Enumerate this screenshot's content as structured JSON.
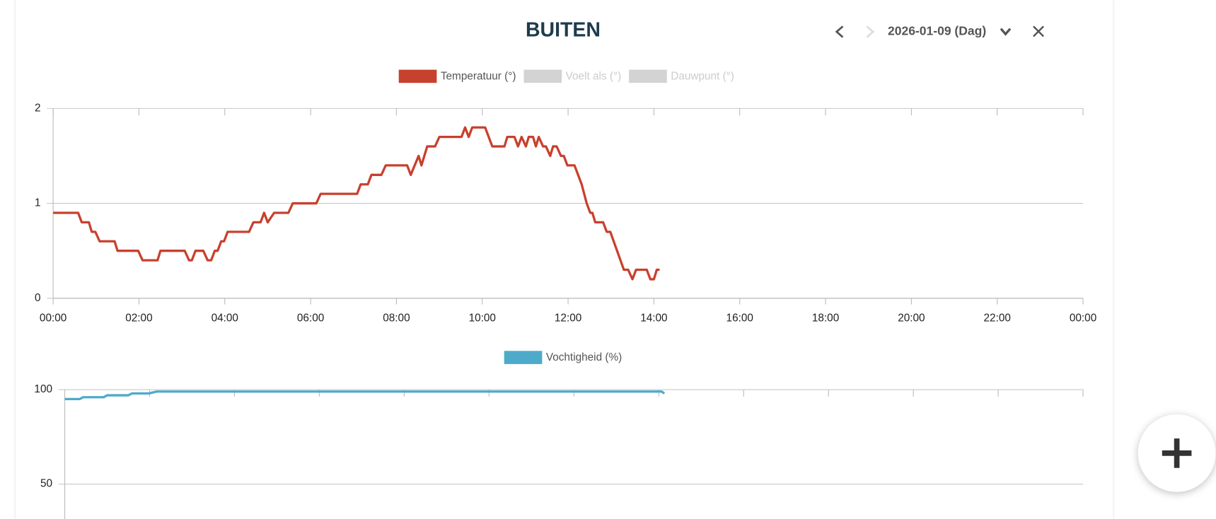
{
  "header": {
    "title": "BUITEN",
    "date": "2026-01-09 (Dag)"
  },
  "chart_data": [
    {
      "type": "line",
      "x": [
        0,
        35,
        40,
        50,
        54,
        59,
        65,
        86,
        90,
        119,
        125,
        146,
        150,
        184,
        190,
        194,
        199,
        210,
        216,
        221,
        226,
        230,
        235,
        239,
        244,
        274,
        280,
        290,
        295,
        300,
        309,
        329,
        335,
        368,
        374,
        425,
        430,
        440,
        445,
        459,
        465,
        495,
        500,
        511,
        515,
        523,
        534,
        540,
        571,
        576,
        581,
        586,
        604,
        614,
        631,
        635,
        645,
        650,
        655,
        661,
        665,
        671,
        675,
        679,
        685,
        689,
        695,
        699,
        704,
        710,
        714,
        719,
        729,
        739,
        746,
        751,
        754,
        758,
        769,
        774,
        779,
        798,
        804,
        810,
        815,
        830,
        835,
        840,
        844,
        848
      ],
      "xlim": [
        0,
        1440
      ],
      "xticks": [
        {
          "value": 0,
          "label": "00:00"
        },
        {
          "value": 120,
          "label": "02:00"
        },
        {
          "value": 240,
          "label": "04:00"
        },
        {
          "value": 360,
          "label": "06:00"
        },
        {
          "value": 480,
          "label": "08:00"
        },
        {
          "value": 600,
          "label": "10:00"
        },
        {
          "value": 720,
          "label": "12:00"
        },
        {
          "value": 840,
          "label": "14:00"
        },
        {
          "value": 960,
          "label": "16:00"
        },
        {
          "value": 1080,
          "label": "18:00"
        },
        {
          "value": 1200,
          "label": "20:00"
        },
        {
          "value": 1320,
          "label": "22:00"
        },
        {
          "value": 1440,
          "label": "00:00"
        }
      ],
      "ylim": [
        0,
        2
      ],
      "yticks": [
        0,
        1,
        2
      ],
      "grid": true,
      "series": [
        {
          "name": "Temperatuur (°)",
          "color": "#c8402e",
          "values": [
            0.9,
            0.9,
            0.8,
            0.8,
            0.7,
            0.7,
            0.6,
            0.6,
            0.5,
            0.5,
            0.4,
            0.4,
            0.5,
            0.5,
            0.4,
            0.4,
            0.5,
            0.5,
            0.4,
            0.4,
            0.5,
            0.5,
            0.6,
            0.6,
            0.7,
            0.7,
            0.8,
            0.8,
            0.9,
            0.8,
            0.9,
            0.9,
            1.0,
            1.0,
            1.1,
            1.1,
            1.2,
            1.2,
            1.3,
            1.3,
            1.4,
            1.4,
            1.3,
            1.5,
            1.4,
            1.6,
            1.6,
            1.7,
            1.7,
            1.8,
            1.7,
            1.8,
            1.8,
            1.6,
            1.6,
            1.7,
            1.7,
            1.6,
            1.7,
            1.6,
            1.7,
            1.7,
            1.6,
            1.7,
            1.6,
            1.6,
            1.5,
            1.6,
            1.6,
            1.5,
            1.5,
            1.4,
            1.4,
            1.2,
            1.0,
            0.9,
            0.9,
            0.8,
            0.8,
            0.7,
            0.7,
            0.3,
            0.3,
            0.2,
            0.3,
            0.3,
            0.2,
            0.2,
            0.3,
            0.3
          ]
        }
      ],
      "hidden_series": [
        {
          "name": "Voelt als (°)",
          "color": "#d3d3d3"
        },
        {
          "name": "Dauwpunt (°)",
          "color": "#d3d3d3"
        }
      ]
    },
    {
      "type": "line",
      "x": [
        0,
        21,
        26,
        55,
        60,
        90,
        95,
        119,
        130,
        844,
        848
      ],
      "xlim": [
        0,
        1440
      ],
      "xticks": [
        120,
        240,
        360,
        480,
        600,
        720,
        840,
        960,
        1080,
        1200,
        1320,
        1440
      ],
      "ylim": [
        0,
        100
      ],
      "yticks": [
        50,
        100
      ],
      "grid": true,
      "series": [
        {
          "name": "Vochtigheid (%)",
          "color": "#4eaacb",
          "values": [
            95,
            95,
            96,
            96,
            97,
            97,
            98,
            98,
            99,
            99,
            98
          ]
        }
      ]
    }
  ]
}
